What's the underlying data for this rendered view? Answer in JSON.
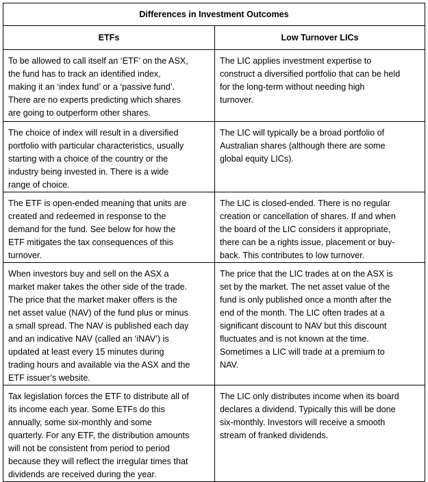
{
  "title": "Differences in Investment  Outcomes",
  "headers": [
    "ETFs",
    "Low Turnover LICs"
  ],
  "rows": [
    {
      "etf": [
        "To be allowed to call itself an ‘ETF’ on the ASX,",
        "the fund has to track an identified index,",
        "making it an ‘index fund’ or a ‘passive fund’.",
        "There are no experts predicting which shares",
        "are going to outperform other shares."
      ],
      "lic": [
        "The LIC applies investment expertise to",
        "construct a diversified portfolio that can be held",
        "for the long-term without needing high",
        "turnover."
      ]
    },
    {
      "etf": [
        "The choice of index will result in a diversified",
        "portfolio with particular characteristics, usually",
        "starting with a choice of the country or the",
        "industry being invested in. There is a wide",
        "range of choice."
      ],
      "lic": [
        "The LIC will typically be a broad portfolio of",
        "Australian shares (although there are some",
        "global equity LICs)."
      ]
    },
    {
      "etf": [
        "The ETF is open-ended meaning that units are",
        "created and redeemed in response to the",
        "demand for the fund. See below for how the",
        "ETF mitigates the tax consequences of this",
        "turnover."
      ],
      "lic": [
        "The LIC is closed-ended. There is no regular",
        "creation or cancellation of shares. If and when",
        "the board of the LIC considers it appropriate,",
        "there can be a rights issue, placement or buy-",
        "back. This contributes to low turnover."
      ]
    },
    {
      "etf": [
        "When investors buy and sell on the ASX a",
        "market maker takes the other side of the trade.",
        "The price that the market maker offers is the",
        "net asset value (NAV) of the fund plus or minus",
        "a small spread. The NAV is published each day",
        "and an indicative NAV (called an ‘iNAV’)  is",
        "updated at least every 15 minutes during",
        "trading hours and available via the ASX and the",
        "ETF issuer’s website."
      ],
      "lic": [
        "The price that the LIC trades at on the ASX is",
        "set by the market. The net asset value of the",
        "fund is only published once a month after the",
        "end of the month. The LIC often trades at a",
        "significant discount to NAV but this discount",
        "fluctuates and is not known at the time.",
        "Sometimes a LIC will trade at a premium to",
        "NAV."
      ]
    },
    {
      "etf": [
        "Tax legislation forces the ETF to distribute all of",
        "its income each year. Some ETFs do this",
        "annually, some six-monthly and some",
        "quarterly. For any ETF, the distribution amounts",
        "will not be consistent from period to period",
        "because they will reflect the irregular times that",
        "dividends are received during the year."
      ],
      "lic": [
        "The LIC only distributes income when its board",
        "declares a dividend. Typically this will be done",
        "six-monthly. Investors will receive a smooth",
        "stream of franked dividends."
      ]
    }
  ]
}
